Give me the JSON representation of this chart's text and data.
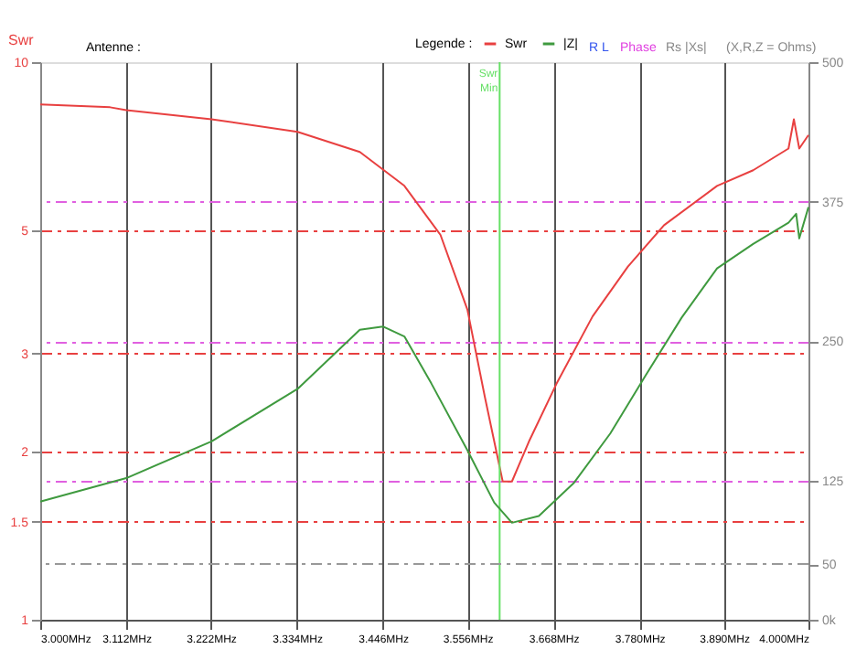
{
  "chart_data": {
    "type": "line",
    "ylabel": "Swr",
    "legend_title": "Legende :",
    "legend": "top right",
    "grid": true,
    "marker": "none",
    "xlim": [
      3.0,
      4.0
    ],
    "xticks": [
      {
        "value": 3.0,
        "label": "3.000MHz"
      },
      {
        "value": 3.112,
        "label": "3.112MHz"
      },
      {
        "value": 3.222,
        "label": "3.222MHz"
      },
      {
        "value": 3.334,
        "label": "3.334MHz"
      },
      {
        "value": 3.446,
        "label": "3.446MHz"
      },
      {
        "value": 3.556,
        "label": "3.556MHz"
      },
      {
        "value": 3.668,
        "label": "3.668MHz"
      },
      {
        "value": 3.78,
        "label": "3.780MHz"
      },
      {
        "value": 3.89,
        "label": "3.890MHz"
      },
      {
        "value": 4.0,
        "label": "4.000MHz"
      }
    ],
    "log": "y",
    "ylim": [
      1,
      10
    ],
    "yticks": [
      1,
      1.5,
      2,
      3,
      5,
      10
    ],
    "y2lim": [
      0,
      500
    ],
    "y2ticks": [
      {
        "value": 0,
        "label": "0k"
      },
      50,
      125,
      250,
      375,
      500
    ],
    "series": [
      {
        "name": "Swr",
        "color": "#e84040",
        "line_style": "solid",
        "x": [
          3.0,
          3.091,
          3.112,
          3.223,
          3.335,
          3.416,
          3.474,
          3.521,
          3.556,
          3.579,
          3.602,
          3.614,
          3.637,
          3.672,
          3.719,
          3.765,
          3.812,
          3.881,
          3.928,
          3.974,
          3.981,
          3.988,
          4.0
        ],
        "values": [
          8.4,
          8.3,
          8.2,
          7.9,
          7.5,
          6.9,
          6.0,
          4.9,
          3.6,
          2.5,
          1.77,
          1.77,
          2.1,
          2.65,
          3.5,
          4.3,
          5.1,
          6.0,
          6.4,
          7.0,
          7.9,
          7.0,
          7.4
        ]
      },
      {
        "name": "|Z|",
        "color": "#3f9a3f",
        "axis": "y2",
        "line_style": "solid",
        "x": [
          3.0,
          3.112,
          3.223,
          3.335,
          3.416,
          3.446,
          3.474,
          3.509,
          3.556,
          3.591,
          3.614,
          3.649,
          3.695,
          3.742,
          3.788,
          3.835,
          3.881,
          3.928,
          3.974,
          3.984,
          3.988,
          4.0
        ],
        "values": [
          106,
          127,
          160,
          207,
          260,
          263,
          254,
          212,
          152,
          105,
          87,
          93,
          123,
          167,
          219,
          271,
          315,
          337,
          356,
          364,
          342,
          370
        ]
      }
    ],
    "ref_lines": [
      {
        "axis": "y2",
        "value": 50,
        "color": "#999999",
        "line_style": "dashed"
      },
      {
        "axis": "x",
        "value": 3.598,
        "label": "Swr Min",
        "color": "#66e066",
        "line_style": "solid"
      }
    ],
    "annotations": [
      "Antenne :",
      "R L",
      "Phase",
      "Rs |Xs|",
      "(X,R,Z = Ohms)"
    ]
  }
}
